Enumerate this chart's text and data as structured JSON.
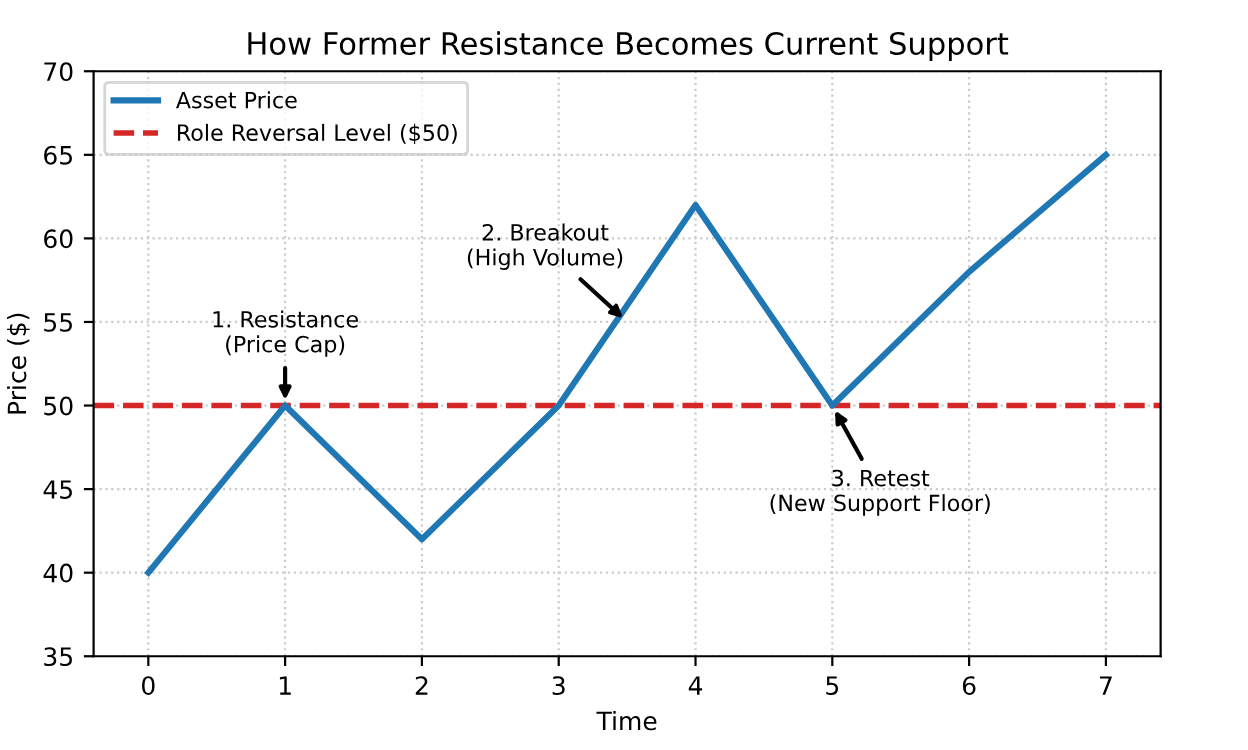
{
  "chart_data": {
    "type": "line",
    "title": "How Former Resistance Becomes Current Support",
    "xlabel": "Time",
    "ylabel": "Price ($)",
    "x": [
      0,
      1,
      2,
      3,
      4,
      5,
      6,
      7
    ],
    "series": [
      {
        "name": "Asset Price",
        "color": "#1f77b4",
        "values": [
          40,
          50,
          42,
          50,
          62,
          50,
          58,
          65
        ]
      }
    ],
    "ref_lines": [
      {
        "axis": "y",
        "value": 50,
        "label": "Role Reversal Level ($50)",
        "color": "#d62728",
        "line_style": "dashed"
      }
    ],
    "annotations": [
      {
        "text": "1. Resistance\n(Price Cap)",
        "x": 1,
        "y": 50
      },
      {
        "text": "2. Breakout\n(High Volume)",
        "x": 3.5,
        "y": 55
      },
      {
        "text": "3. Retest\n(New Support Floor)",
        "x": 5,
        "y": 50
      }
    ],
    "xlim": [
      -0.4,
      7.4
    ],
    "ylim": [
      35,
      70
    ],
    "xticks": [
      0,
      1,
      2,
      3,
      4,
      5,
      6,
      7
    ],
    "yticks": [
      35,
      40,
      45,
      50,
      55,
      60,
      65,
      70
    ],
    "grid": true,
    "legend": "top left",
    "marker": "none",
    "line_style": "solid"
  }
}
